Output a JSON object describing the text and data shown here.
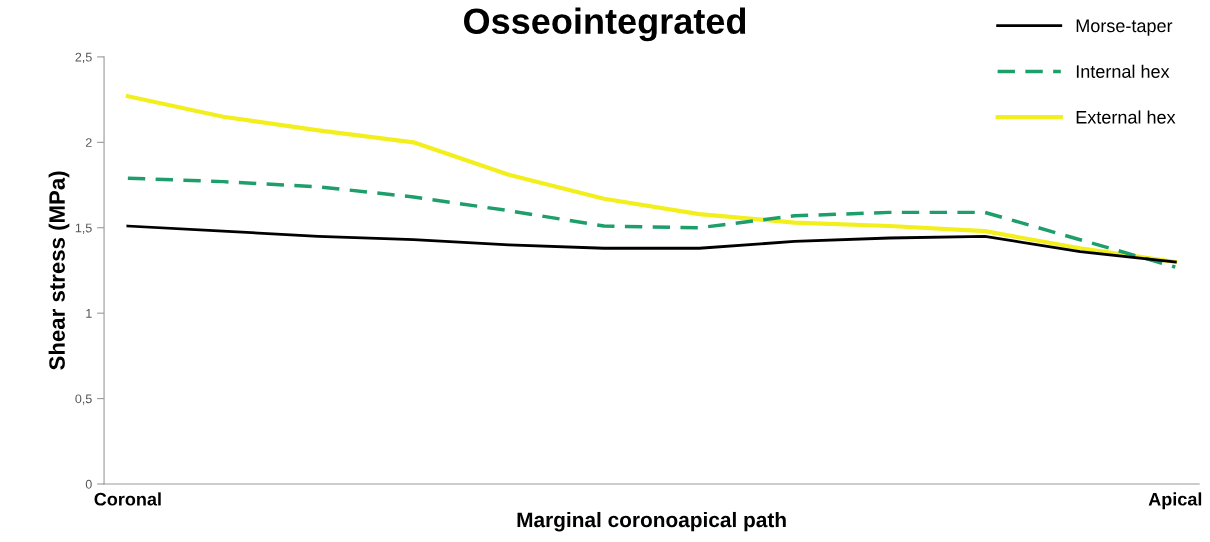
{
  "chart_data": {
    "type": "line",
    "title": "Osseointegrated",
    "xlabel": "Marginal coronoapical path",
    "ylabel": "Shear stress (MPa)",
    "categories": [
      "Coronal",
      null,
      null,
      null,
      null,
      null,
      null,
      null,
      null,
      null,
      null,
      "Apical"
    ],
    "series": [
      {
        "name": "Morse-taper",
        "color": "#000000",
        "line_style": "solid",
        "values": [
          1.51,
          1.48,
          1.45,
          1.43,
          1.4,
          1.38,
          1.38,
          1.42,
          1.44,
          1.45,
          1.36,
          1.3
        ]
      },
      {
        "name": "Internal hex",
        "color": "#1e9e6a",
        "line_style": "dashed",
        "values": [
          1.79,
          1.77,
          1.74,
          1.68,
          1.6,
          1.51,
          1.5,
          1.57,
          1.59,
          1.59,
          1.43,
          1.27
        ]
      },
      {
        "name": "External hex",
        "color": "#f2ef1c",
        "line_style": "solid",
        "values": [
          2.27,
          2.15,
          2.07,
          2.0,
          1.81,
          1.67,
          1.58,
          1.53,
          1.51,
          1.48,
          1.38,
          1.3
        ]
      }
    ],
    "ylim": [
      0,
      2.5
    ],
    "yticks": [
      0,
      {
        "value": 0.5,
        "label": "0,5"
      },
      1,
      {
        "value": 1.5,
        "label": "1,5"
      },
      2,
      {
        "value": 2.5,
        "label": "2,5"
      }
    ],
    "grid": false,
    "legend": "top right",
    "marker": "none"
  }
}
